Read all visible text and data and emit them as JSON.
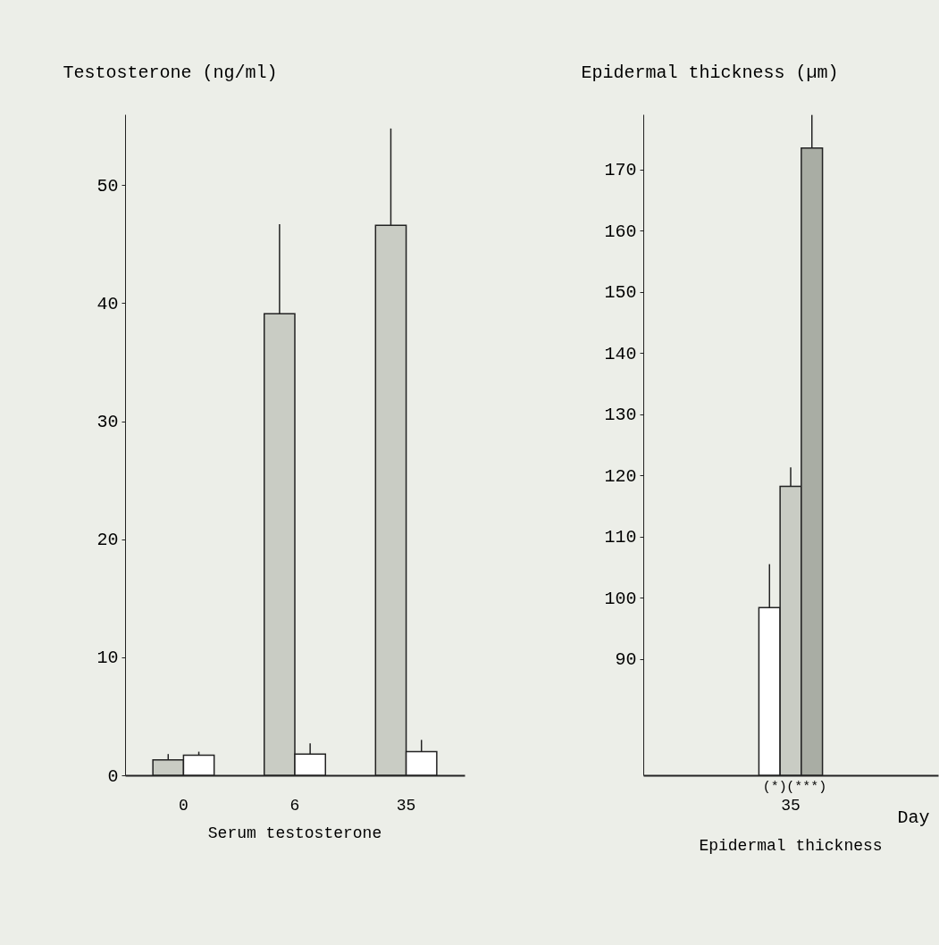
{
  "chart_data": [
    {
      "type": "bar",
      "title": "Serum testosterone",
      "ylabel": "Testosterone (ng/ml)",
      "categories": [
        "0",
        "6",
        "35"
      ],
      "series": [
        {
          "color": "#c9ccc4",
          "values": [
            1.3,
            39.1,
            46.6
          ],
          "errors": [
            [
              1.3,
              1.8
            ],
            [
              39.1,
              46.7
            ],
            [
              46.6,
              54.8
            ]
          ]
        },
        {
          "color": "#ffffff",
          "values": [
            1.7,
            1.8,
            2.0
          ],
          "errors": [
            [
              1.7,
              2.0
            ],
            [
              1.8,
              2.7
            ],
            [
              2.0,
              3.0
            ]
          ]
        }
      ],
      "ylim": [
        0,
        56
      ],
      "yticks": [
        0,
        10,
        20,
        30,
        40,
        50
      ],
      "grid": false,
      "legend": false
    },
    {
      "type": "bar",
      "title": "Epidermal thickness",
      "ylabel": "Epidermal thickness (µm)",
      "xlabel": "Day",
      "categories": [
        "35"
      ],
      "series": [
        {
          "color": "#ffffff",
          "values": [
            98.4
          ],
          "errors": [
            [
              98.4,
              105.5
            ]
          ]
        },
        {
          "color": "#c9ccc4",
          "values": [
            118.2
          ],
          "errors": [
            [
              118.2,
              121.3
            ]
          ]
        },
        {
          "color": "#a9ada4",
          "values": [
            173.5
          ],
          "errors": [
            [
              173.5,
              178.9
            ]
          ]
        }
      ],
      "annotations": [
        "(*)",
        "(***)"
      ],
      "ylim": [
        71,
        179
      ],
      "yticks": [
        90,
        100,
        110,
        120,
        130,
        140,
        150,
        160,
        170
      ],
      "grid": false,
      "legend": false
    }
  ]
}
